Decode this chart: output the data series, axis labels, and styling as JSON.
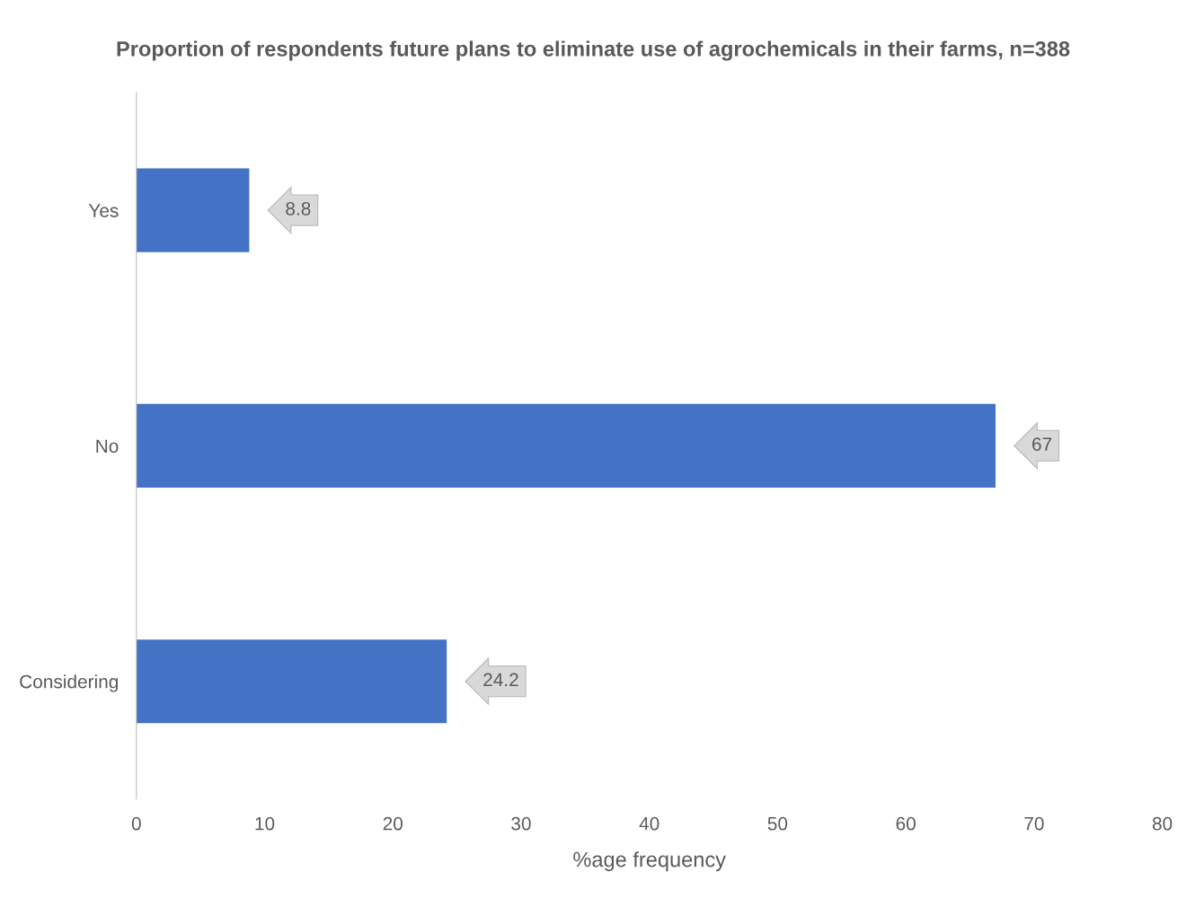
{
  "chart_data": {
    "type": "bar",
    "orientation": "horizontal",
    "title": "Proportion of respondents future plans to eliminate use of agrochemicals in their farms, n=388",
    "xlabel": "%age frequency",
    "categories": [
      "Yes",
      "No",
      "Considering"
    ],
    "values": [
      8.8,
      67,
      24.2
    ],
    "color": "#4472c4",
    "xlim": [
      0,
      80
    ],
    "xticks": [
      0,
      10,
      20,
      30,
      40,
      50,
      60,
      70,
      80
    ],
    "grid": false,
    "data_labels": true
  }
}
